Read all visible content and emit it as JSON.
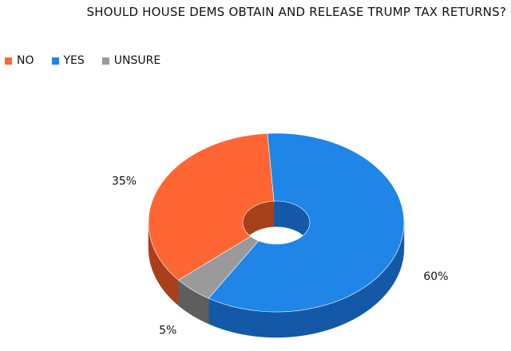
{
  "chart_data": {
    "type": "pie",
    "variant": "3d-donut",
    "title": "SHOULD HOUSE DEMS OBTAIN AND RELEASE TRUMP TAX RETURNS?",
    "legend_position": "top-left",
    "slices": [
      {
        "label": "YES",
        "value": 60,
        "display": "60%",
        "color": "#1f85e6",
        "side_color": "#1459a8"
      },
      {
        "label": "UNSURE",
        "value": 5,
        "display": "5%",
        "color": "#9a9a9a",
        "side_color": "#5e5e5e"
      },
      {
        "label": "NO",
        "value": 35,
        "display": "35%",
        "color": "#ff6633",
        "side_color": "#a8401c"
      }
    ],
    "legend": [
      {
        "label": "NO",
        "color": "#ff6633"
      },
      {
        "label": "YES",
        "color": "#1f85e6"
      },
      {
        "label": "UNSURE",
        "color": "#9a9a9a"
      }
    ]
  }
}
